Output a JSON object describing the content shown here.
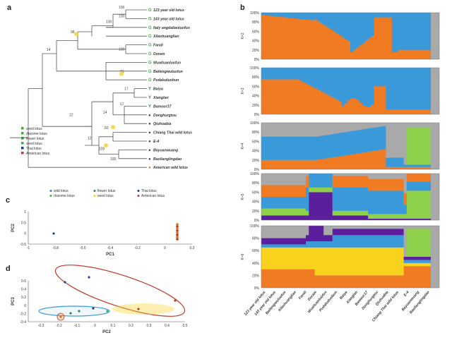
{
  "panels": {
    "a": "a",
    "b": "b",
    "c": "c",
    "d": "d"
  },
  "tree": {
    "tips": [
      {
        "label": "123 year old lotus",
        "marker": "G",
        "color": "#3fae3f"
      },
      {
        "label": "143 year old lotus",
        "marker": "G",
        "color": "#3fae3f"
      },
      {
        "label": "Italy angdalianluofun",
        "marker": "G",
        "color": "#3fae3f"
      },
      {
        "label": "Xilashuanglian",
        "marker": "G",
        "color": "#3fae3f"
      },
      {
        "label": "Fandi",
        "marker": "G",
        "color": "#3fae3f"
      },
      {
        "label": "Doram",
        "marker": "G",
        "color": "#3fae3f"
      },
      {
        "label": "Wuaituanluofun",
        "marker": "G",
        "color": "#3fae3f"
      },
      {
        "label": "Bailengwuluofun",
        "marker": "G",
        "color": "#3fae3f"
      },
      {
        "label": "Pudaluduobun",
        "marker": "G",
        "color": "#3fae3f"
      },
      {
        "label": "Baiya",
        "marker": "Y",
        "color": "#2a8a4a"
      },
      {
        "label": "Xianglan",
        "marker": "Y",
        "color": "#2a8a4a"
      },
      {
        "label": "Bamoor17",
        "marker": "Y",
        "color": "#2a8a4a"
      },
      {
        "label": "Donghurgtou",
        "marker": "●",
        "color": "#1f3d8a"
      },
      {
        "label": "Qiuhuabia",
        "marker": "●",
        "color": "#1f3d8a"
      },
      {
        "label": "Chiang Thai wild lotus",
        "marker": "●",
        "color": "#1f3d8a"
      },
      {
        "label": "E-4",
        "marker": "●",
        "color": "#1f3d8a"
      },
      {
        "label": "Bayuanwuang",
        "marker": "●",
        "color": "#1f3d8a"
      },
      {
        "label": "Baolianglingdao",
        "marker": "●",
        "color": "#1f3d8a"
      },
      {
        "label": "American wild lotus",
        "marker": "●",
        "color": "#d4781e"
      }
    ],
    "bootstrap": [
      "100",
      "100",
      "100",
      "98",
      "14",
      "100",
      "71",
      "17",
      "57",
      "12",
      "14",
      "60",
      "12",
      "100",
      "100"
    ],
    "legend": [
      "seed lotus",
      "rhizome lotus",
      "flower lotus",
      "seed lotus",
      "Thai lotus",
      "American lotus"
    ],
    "legend_colors": [
      "#3fae3f",
      "#3fae3f",
      "#2a8a4a",
      "#3fae3f",
      "#1f3d8a",
      "#c0392b"
    ]
  },
  "structure": {
    "rows": [
      "K=2",
      "K=3",
      "K=4",
      "K=5",
      "K=6"
    ],
    "ytick_labels": [
      "100%",
      "80%",
      "60%",
      "40%",
      "20%",
      "0%"
    ],
    "samples": [
      "123 year old lotus",
      "143 year old lotus",
      "Bailengwuluofun",
      "Xilashuanglian",
      "Fandi",
      "Doram",
      "Wuaituanluofun",
      "Pudaluduobun",
      "Baiya",
      "Xianglan",
      "Bamoor17",
      "Donghurgtou",
      "Qiuhuabia",
      "Chiang Thai wild lotus",
      "E-4",
      "Bayuanwuang",
      "Baolianglingdao"
    ],
    "colors": {
      "orange": "#f07b22",
      "blue": "#3a9ad9",
      "green": "#8ed14a",
      "purple": "#5b1f9e",
      "yellow": "#f8d21c",
      "gray": "#a9a9a9"
    }
  },
  "pca_c": {
    "legend": [
      "wild lotus",
      "flower lotus",
      "Thai lotus",
      "rhizome lotus",
      "seed lotus",
      "American lotus"
    ],
    "legend_colors": [
      "#3a7bd5",
      "#2a8a4a",
      "#1f3d8a",
      "#3fae3f",
      "#f8d21c",
      "#c0392b"
    ],
    "xlabel": "PC1",
    "ylabel": "PC2",
    "xticks": [
      "-1",
      "-0.8",
      "-0.6",
      "-0.4",
      "-0.2",
      "0",
      "0.2"
    ],
    "yticks": [
      "1",
      "0.5",
      "0",
      "-0.5"
    ]
  },
  "pca_d": {
    "xlabel": "PC2",
    "ylabel": "PC3",
    "xticks": [
      "-0.3",
      "-0.2",
      "-0.1",
      "0",
      "0.1",
      "0.2",
      "0.3",
      "0.4",
      "0.5"
    ],
    "yticks": [
      "0.6",
      "0.4",
      "0.2",
      "0",
      "-0.2",
      "-0.4"
    ]
  }
}
